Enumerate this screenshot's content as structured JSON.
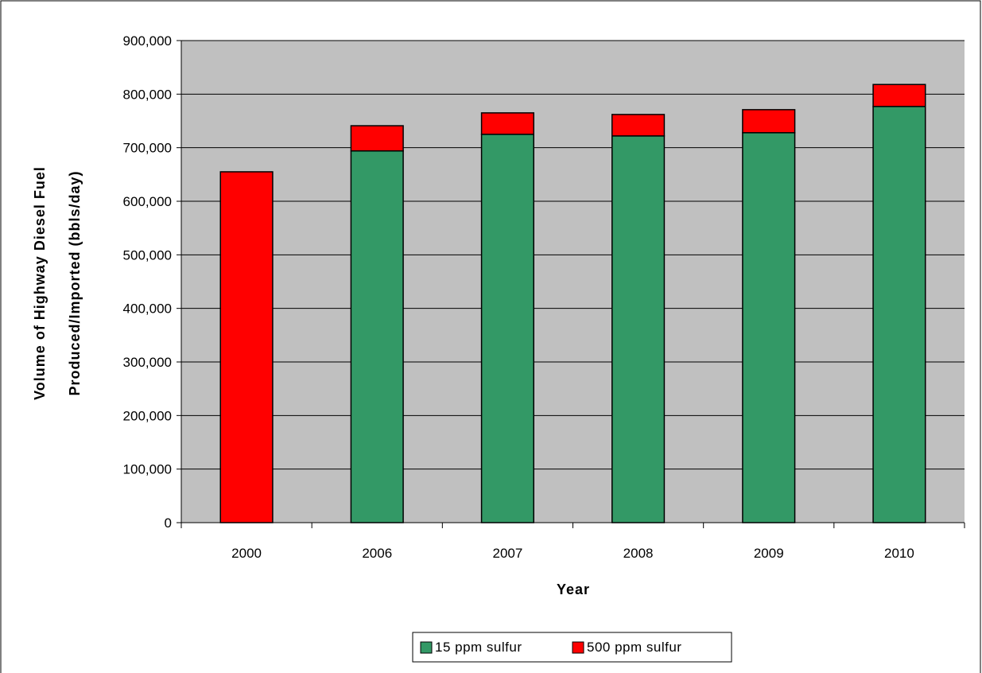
{
  "chart_data": {
    "type": "bar",
    "stacked": true,
    "categories": [
      "2000",
      "2006",
      "2007",
      "2008",
      "2009",
      "2010"
    ],
    "series": [
      {
        "name": "15 ppm sulfur",
        "color": "#339966",
        "values": [
          0,
          694000,
          725000,
          722000,
          728000,
          777000
        ]
      },
      {
        "name": "500 ppm sulfur",
        "color": "#ff0000",
        "values": [
          655000,
          47000,
          40000,
          40000,
          43000,
          41000
        ]
      }
    ],
    "xlabel": "Year",
    "ylabel_lines": [
      "Volume of Highway Diesel Fuel",
      "Produced/Imported (bbls/day)"
    ],
    "ylim": [
      0,
      900000
    ],
    "yticks": [
      0,
      100000,
      200000,
      300000,
      400000,
      500000,
      600000,
      700000,
      800000,
      900000
    ],
    "ytick_labels": [
      "0",
      "100,000",
      "200,000",
      "300,000",
      "400,000",
      "500,000",
      "600,000",
      "700,000",
      "800,000",
      "900,000"
    ],
    "plot_background": "#c0c0c0",
    "grid": true,
    "legend_position": "bottom"
  }
}
